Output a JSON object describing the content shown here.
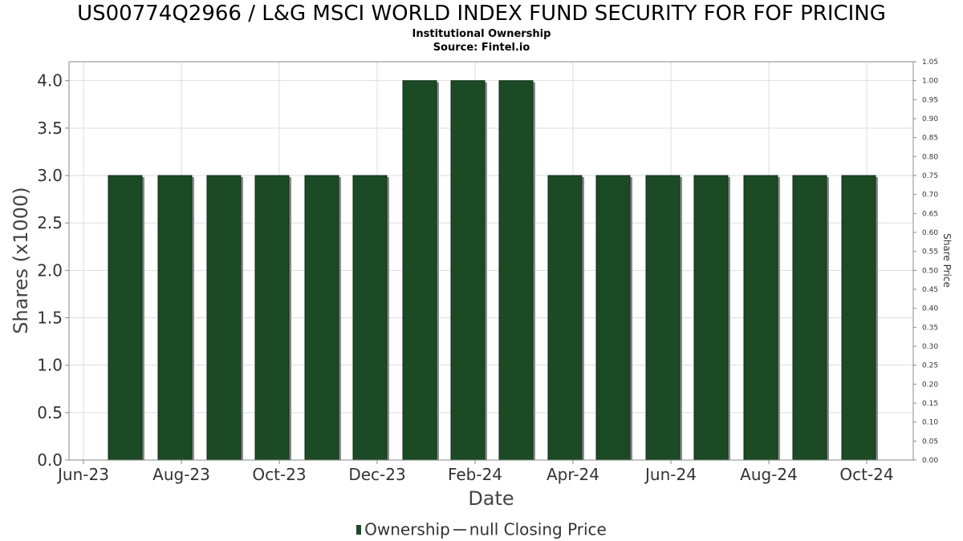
{
  "header": {
    "title": "US00774Q2966 / L&G MSCI WORLD INDEX FUND SECURITY FOR FOF PRICING",
    "subtitle": "Institutional Ownership",
    "source": "Source: Fintel.io"
  },
  "legend": {
    "ownership_label": "Ownership",
    "price_label": "null Closing Price"
  },
  "colors": {
    "bar": "#1b4a25",
    "bar_shadow": "#8a8a8a",
    "grid": "#dddddd"
  },
  "chart_data": {
    "type": "bar",
    "xlabel": "Date",
    "ylabel": "Shares (x1000)",
    "y2label": "Share Price",
    "ylim": [
      0,
      4.2
    ],
    "y2lim": [
      0,
      1.05
    ],
    "yticks": [
      "0.0",
      "0.5",
      "1.0",
      "1.5",
      "2.0",
      "2.5",
      "3.0",
      "3.5",
      "4.0"
    ],
    "y2ticks": [
      "0.00",
      "0.05",
      "0.10",
      "0.15",
      "0.20",
      "0.25",
      "0.30",
      "0.35",
      "0.40",
      "0.45",
      "0.50",
      "0.55",
      "0.60",
      "0.65",
      "0.70",
      "0.75",
      "0.80",
      "0.85",
      "0.90",
      "0.95",
      "1.00",
      "1.05"
    ],
    "xticks": [
      "Jun-23",
      "Aug-23",
      "Oct-23",
      "Dec-23",
      "Feb-24",
      "Apr-24",
      "Jun-24",
      "Aug-24",
      "Oct-24"
    ],
    "grid": true,
    "legend_position": "bottom",
    "series": [
      {
        "name": "Ownership",
        "values": [
          3,
          3,
          3,
          3,
          3,
          3,
          4,
          4,
          4,
          3,
          3,
          3,
          3,
          3,
          3,
          3
        ]
      }
    ]
  }
}
